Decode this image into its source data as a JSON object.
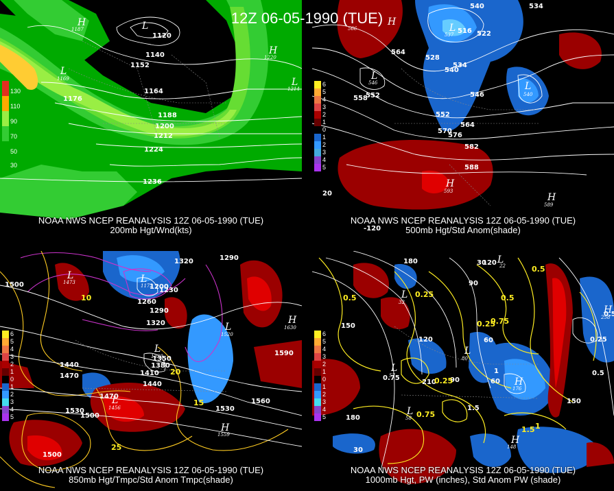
{
  "main_title": "12Z 06-05-1990 (TUE)",
  "panels": [
    {
      "caption_line1": "NOAA NWS NCEP REANALYSIS 12Z 06-05-1990 (TUE)",
      "caption_line2": "200mb Hgt/Wnd(kts)",
      "legend": [
        "130",
        "110",
        "90",
        "70",
        "50",
        "30"
      ],
      "contour_labels": [
        "1120",
        "1140",
        "1152",
        "1164",
        "1176",
        "1188",
        "1200",
        "1212",
        "1224",
        "1236"
      ],
      "centers": [
        {
          "type": "H",
          "value": "1187"
        },
        {
          "type": "H",
          "value": "1220"
        },
        {
          "type": "L",
          "value": "1169"
        },
        {
          "type": "L",
          "value": "1214"
        },
        {
          "type": "L",
          "value": "1116"
        }
      ]
    },
    {
      "caption_line1": "NOAA NWS NCEP REANALYSIS 12Z 06-05-1990 (TUE)",
      "caption_line2": "500mb Hgt/Std Anom(shade)",
      "legend": [
        "6",
        "5",
        "4",
        "3",
        "2",
        "1",
        "0",
        "1",
        "2",
        "3",
        "4",
        "5"
      ],
      "contour_labels": [
        "540",
        "534",
        "564",
        "552",
        "528",
        "534",
        "540",
        "546",
        "552",
        "558",
        "564",
        "570",
        "576",
        "582",
        "588",
        "516",
        "522"
      ],
      "centers": [
        {
          "type": "H",
          "value": "566"
        },
        {
          "type": "H",
          "value": "593"
        },
        {
          "type": "H",
          "value": "589"
        },
        {
          "type": "L",
          "value": "546"
        },
        {
          "type": "L",
          "value": "537"
        },
        {
          "type": "L",
          "value": "540"
        }
      ],
      "axis_labels": [
        "20",
        "-120"
      ]
    },
    {
      "caption_line1": "NOAA NWS NCEP REANALYSIS 12Z 06-05-1990 (TUE)",
      "caption_line2": "850mb Hgt/Tmpc/Std Anom Tmpc(shade)",
      "legend": [
        "6",
        "5",
        "4",
        "3",
        "2",
        "1",
        "0",
        "1",
        "2",
        "3",
        "4",
        "5"
      ],
      "contour_labels": [
        "1290",
        "1320",
        "1500",
        "1260",
        "1230",
        "1200",
        "1290",
        "1320",
        "1440",
        "1470",
        "1530",
        "1500",
        "1470",
        "1560",
        "1590",
        "1500",
        "1350",
        "1380",
        "1410",
        "1440",
        "1530",
        "25",
        "20",
        "15",
        "10",
        "20"
      ],
      "centers": [
        {
          "type": "H",
          "value": "1630"
        },
        {
          "type": "H",
          "value": "1559"
        },
        {
          "type": "L",
          "value": "1172"
        },
        {
          "type": "L",
          "value": "1473"
        },
        {
          "type": "L",
          "value": "1456"
        },
        {
          "type": "L",
          "value": "1329"
        },
        {
          "type": "L",
          "value": "1520"
        }
      ]
    },
    {
      "caption_line1": "NOAA NWS NCEP REANALYSIS 12Z 06-05-1990 (TUE)",
      "caption_line2": "1000mb Hgt, PW (inches), Std Anom PW (shade)",
      "legend": [
        "6",
        "5",
        "4",
        "3",
        "2",
        "1",
        "0",
        "1",
        "2",
        "3",
        "4",
        "5"
      ],
      "contour_labels": [
        "180",
        "150",
        "120",
        "90",
        "60",
        "30",
        "0.5",
        "0.25",
        "0.5",
        "0.75",
        "1",
        "1.5",
        "210",
        "180",
        "150",
        "120",
        "90",
        "60",
        "30",
        "1.5",
        "0.25",
        "0.5",
        "0.75",
        "0.25"
      ],
      "centers": [
        {
          "type": "H",
          "value": "176"
        },
        {
          "type": "H",
          "value": "258"
        },
        {
          "type": "H",
          "value": "148"
        },
        {
          "type": "L",
          "value": "58"
        },
        {
          "type": "L",
          "value": "32"
        },
        {
          "type": "L",
          "value": "80"
        },
        {
          "type": "L",
          "value": "57"
        },
        {
          "type": "L",
          "value": "22"
        }
      ]
    }
  ],
  "colors": {
    "wind_light_green": "#33cc33",
    "wind_green": "#00aa00",
    "wind_yellowgreen": "#99ee44",
    "wind_yellow": "#ffcc33",
    "anom_pos": "#9b0000",
    "anom_pos_strong": "#e00000",
    "anom_neg": "#1a66cc",
    "anom_neg_strong": "#3399ff",
    "pw_contour": "#ffee22",
    "temp_contour": "#ffcc22",
    "cold_contour": "#cc33cc"
  }
}
